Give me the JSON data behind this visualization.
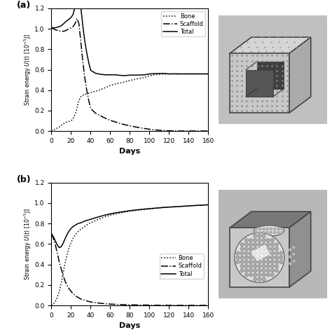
{
  "xlabel": "Days",
  "xlim": [
    0,
    160
  ],
  "ylim": [
    0,
    1.2
  ],
  "yticks": [
    0,
    0.2,
    0.4,
    0.6,
    0.8,
    1.0,
    1.2
  ],
  "xticks": [
    0,
    20,
    40,
    60,
    80,
    100,
    120,
    140,
    160
  ],
  "panel_a": {
    "bone_x": [
      0,
      2,
      4,
      6,
      8,
      10,
      12,
      14,
      16,
      18,
      20,
      22,
      24,
      26,
      28,
      30,
      32,
      34,
      36,
      38,
      40,
      45,
      50,
      55,
      60,
      65,
      70,
      75,
      80,
      85,
      90,
      95,
      100,
      105,
      110,
      115,
      120,
      125,
      130,
      135,
      140,
      145,
      150,
      155,
      160
    ],
    "bone_y": [
      0.0,
      0.01,
      0.02,
      0.03,
      0.04,
      0.055,
      0.07,
      0.085,
      0.09,
      0.095,
      0.1,
      0.12,
      0.16,
      0.22,
      0.3,
      0.335,
      0.35,
      0.36,
      0.365,
      0.37,
      0.375,
      0.39,
      0.405,
      0.425,
      0.445,
      0.46,
      0.47,
      0.48,
      0.495,
      0.505,
      0.515,
      0.525,
      0.54,
      0.55,
      0.555,
      0.558,
      0.558,
      0.558,
      0.558,
      0.558,
      0.558,
      0.558,
      0.558,
      0.558,
      0.558
    ],
    "scaffold_x": [
      0,
      2,
      4,
      6,
      8,
      10,
      12,
      14,
      16,
      18,
      20,
      22,
      24,
      26,
      28,
      30,
      32,
      34,
      36,
      38,
      40,
      45,
      50,
      55,
      60,
      65,
      70,
      75,
      80,
      85,
      90,
      95,
      100,
      105,
      110,
      115,
      120,
      125,
      130,
      135,
      140,
      145,
      150,
      155,
      160
    ],
    "scaffold_y": [
      1.01,
      1.0,
      0.99,
      0.985,
      0.98,
      0.975,
      0.975,
      0.98,
      0.99,
      1.0,
      1.01,
      1.02,
      1.05,
      1.1,
      1.05,
      0.87,
      0.68,
      0.52,
      0.4,
      0.3,
      0.22,
      0.175,
      0.15,
      0.125,
      0.105,
      0.09,
      0.075,
      0.062,
      0.052,
      0.042,
      0.033,
      0.025,
      0.018,
      0.012,
      0.008,
      0.005,
      0.003,
      0.002,
      0.001,
      0.001,
      0.001,
      0.001,
      0.001,
      0.001,
      0.001
    ],
    "total_x": [
      0,
      2,
      4,
      6,
      8,
      10,
      12,
      14,
      16,
      18,
      20,
      22,
      24,
      26,
      28,
      30,
      32,
      34,
      36,
      38,
      40,
      45,
      50,
      55,
      60,
      65,
      70,
      75,
      80,
      85,
      90,
      95,
      100,
      105,
      110,
      115,
      120,
      125,
      130,
      135,
      140,
      145,
      150,
      155,
      160
    ],
    "total_y": [
      1.01,
      1.01,
      1.01,
      1.015,
      1.02,
      1.03,
      1.045,
      1.065,
      1.08,
      1.095,
      1.11,
      1.14,
      1.21,
      1.32,
      1.35,
      1.205,
      1.03,
      0.88,
      0.765,
      0.67,
      0.595,
      0.565,
      0.555,
      0.55,
      0.55,
      0.55,
      0.545,
      0.542,
      0.547,
      0.547,
      0.548,
      0.55,
      0.558,
      0.562,
      0.563,
      0.563,
      0.559,
      0.56,
      0.559,
      0.559,
      0.559,
      0.559,
      0.559,
      0.559,
      0.559
    ]
  },
  "panel_b": {
    "bone_x": [
      0,
      2,
      4,
      6,
      8,
      10,
      12,
      14,
      16,
      18,
      20,
      22,
      24,
      26,
      28,
      30,
      32,
      34,
      36,
      38,
      40,
      45,
      50,
      55,
      60,
      65,
      70,
      75,
      80,
      85,
      90,
      95,
      100,
      105,
      110,
      115,
      120,
      125,
      130,
      135,
      140,
      145,
      150,
      155,
      160
    ],
    "bone_y": [
      0.0,
      0.015,
      0.04,
      0.08,
      0.14,
      0.22,
      0.32,
      0.42,
      0.5,
      0.565,
      0.615,
      0.655,
      0.685,
      0.71,
      0.73,
      0.745,
      0.76,
      0.775,
      0.787,
      0.798,
      0.808,
      0.83,
      0.85,
      0.867,
      0.882,
      0.893,
      0.903,
      0.912,
      0.92,
      0.927,
      0.933,
      0.938,
      0.943,
      0.948,
      0.952,
      0.957,
      0.96,
      0.963,
      0.966,
      0.969,
      0.972,
      0.975,
      0.978,
      0.98,
      0.983
    ],
    "scaffold_x": [
      0,
      2,
      4,
      6,
      8,
      10,
      12,
      14,
      16,
      18,
      20,
      22,
      24,
      26,
      28,
      30,
      32,
      34,
      36,
      38,
      40,
      45,
      50,
      55,
      60,
      65,
      70,
      75,
      80,
      85,
      90,
      95,
      100,
      105,
      110,
      115,
      120,
      125,
      130,
      135,
      140,
      145,
      150,
      155,
      160
    ],
    "scaffold_y": [
      0.7,
      0.655,
      0.59,
      0.51,
      0.425,
      0.355,
      0.29,
      0.235,
      0.195,
      0.163,
      0.138,
      0.115,
      0.098,
      0.085,
      0.073,
      0.063,
      0.056,
      0.05,
      0.044,
      0.039,
      0.034,
      0.027,
      0.021,
      0.017,
      0.013,
      0.011,
      0.009,
      0.007,
      0.006,
      0.005,
      0.004,
      0.004,
      0.003,
      0.002,
      0.002,
      0.002,
      0.001,
      0.001,
      0.001,
      0.001,
      0.001,
      0.001,
      0.001,
      0.001,
      0.001
    ],
    "total_x": [
      0,
      2,
      4,
      6,
      8,
      10,
      12,
      14,
      16,
      18,
      20,
      22,
      24,
      26,
      28,
      30,
      32,
      34,
      36,
      38,
      40,
      45,
      50,
      55,
      60,
      65,
      70,
      75,
      80,
      85,
      90,
      95,
      100,
      105,
      110,
      115,
      120,
      125,
      130,
      135,
      140,
      145,
      150,
      155,
      160
    ],
    "total_y": [
      0.7,
      0.67,
      0.63,
      0.59,
      0.565,
      0.575,
      0.61,
      0.655,
      0.695,
      0.728,
      0.753,
      0.77,
      0.783,
      0.795,
      0.803,
      0.808,
      0.816,
      0.825,
      0.831,
      0.837,
      0.842,
      0.857,
      0.871,
      0.884,
      0.895,
      0.904,
      0.912,
      0.919,
      0.926,
      0.932,
      0.937,
      0.942,
      0.946,
      0.95,
      0.954,
      0.959,
      0.961,
      0.964,
      0.967,
      0.97,
      0.973,
      0.976,
      0.979,
      0.981,
      0.984
    ]
  },
  "line_color": "black",
  "linewidth": 1.1,
  "legend_labels": [
    "Bone",
    "Scaffold",
    "Total"
  ],
  "fig_bg": "white"
}
